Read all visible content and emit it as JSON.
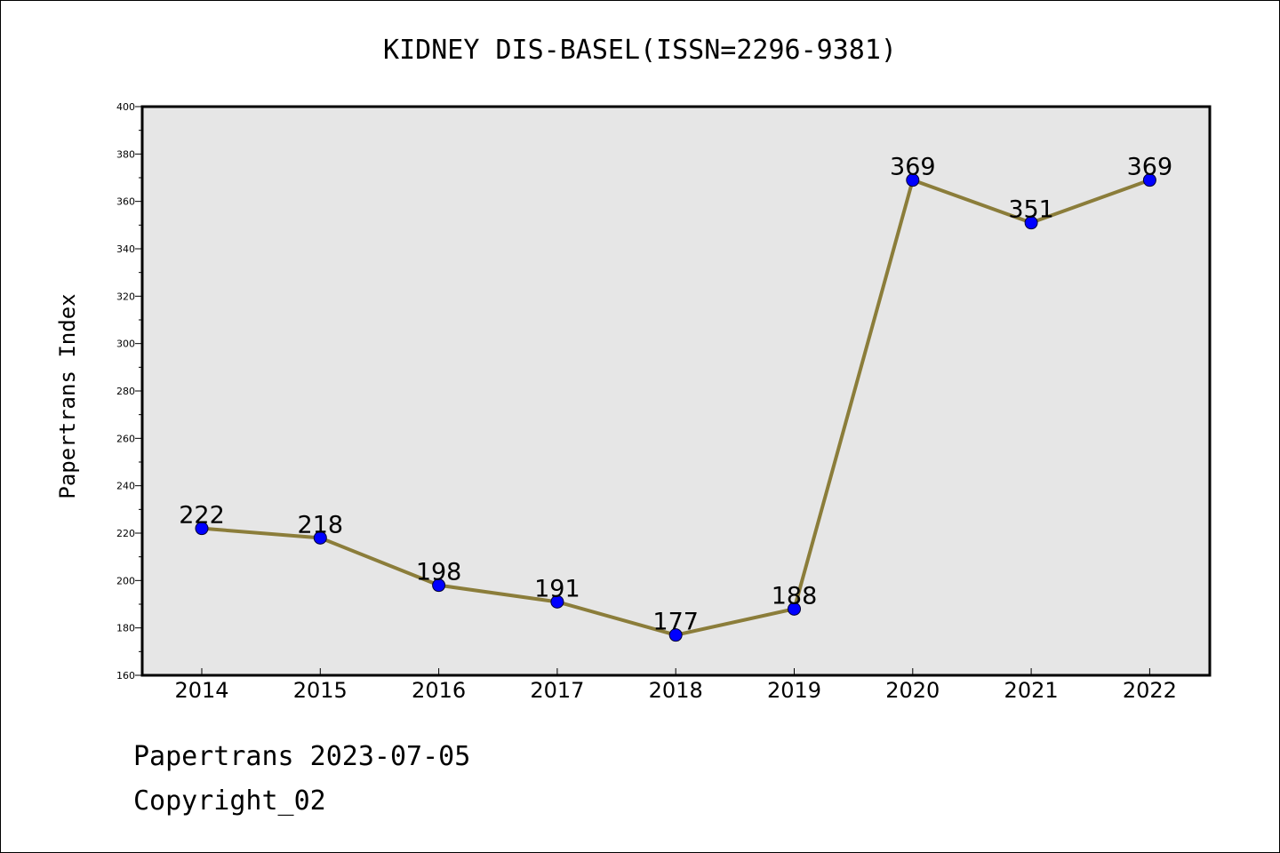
{
  "chart_data": {
    "type": "line",
    "title": "KIDNEY DIS-BASEL(ISSN=2296-9381)",
    "xlabel": "",
    "ylabel": "Papertrans Index",
    "categories": [
      "2014",
      "2015",
      "2016",
      "2017",
      "2018",
      "2019",
      "2020",
      "2021",
      "2022"
    ],
    "series": [
      {
        "values": [
          222,
          218,
          198,
          191,
          177,
          188,
          369,
          351,
          369
        ]
      }
    ],
    "ylim": [
      160,
      400
    ],
    "yticks": [
      160,
      180,
      200,
      220,
      240,
      260,
      280,
      300,
      320,
      340,
      360,
      380,
      400
    ],
    "data_labels": true,
    "grid": false,
    "colors": {
      "line": "#8b7d3a",
      "marker": "#0000ff",
      "plot_background": "#e6e6e6"
    }
  },
  "footer": {
    "line1": "Papertrans 2023-07-05",
    "line2": "Copyright_02"
  }
}
